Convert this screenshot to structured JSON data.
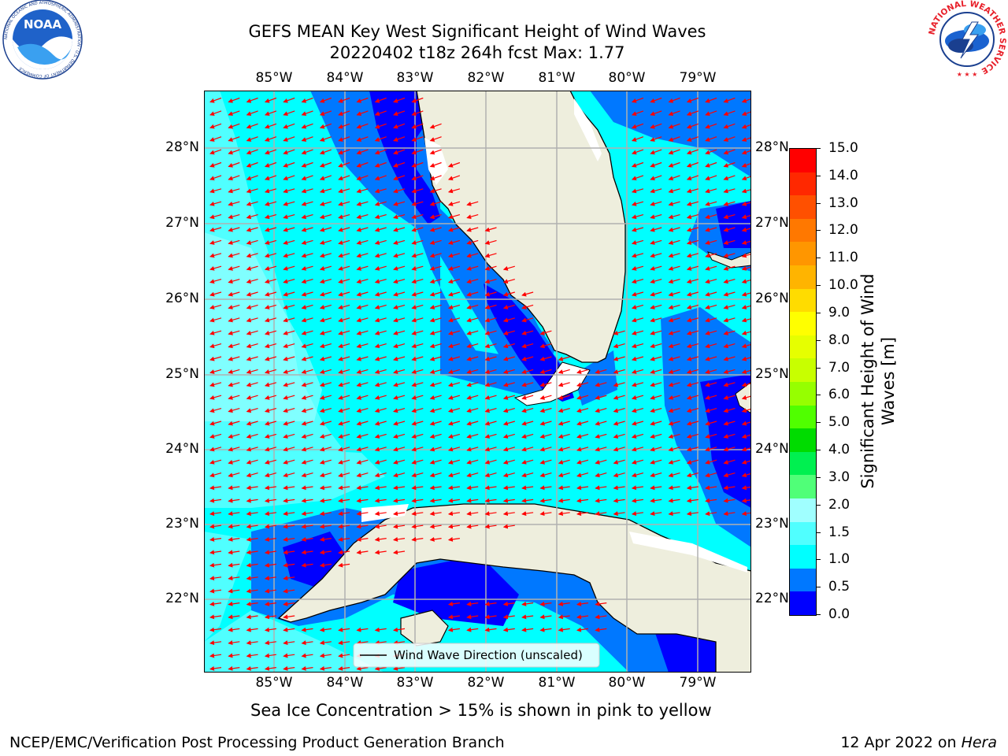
{
  "header": {
    "title_line1": "GEFS MEAN Key West Significant Height of Wind Waves",
    "title_line2": "20220402 t18z 264h fcst   Max: 1.77"
  },
  "logos": {
    "noaa_text": "NOAA",
    "noaa_ring_text": "NATIONAL OCEANIC AND ATMOSPHERIC ADMINISTRATION · U.S. DEPARTMENT OF COMMERCE",
    "nws_ring_text": "NATIONAL WEATHER SERVICE"
  },
  "map": {
    "lon_labels": [
      "85°W",
      "84°W",
      "83°W",
      "82°W",
      "81°W",
      "80°W",
      "79°W"
    ],
    "lat_labels": [
      "28°N",
      "27°N",
      "26°N",
      "25°N",
      "24°N",
      "23°N",
      "22°N"
    ],
    "legend_label": "Wind Wave Direction (unscaled)",
    "colors": {
      "land": "#eeeedd",
      "band_0_0.5": "#0000ff",
      "band_0.5_1.0": "#0078ff",
      "band_1.0_1.5": "#00ffff",
      "band_1.5_2.0": "#50ffff",
      "band_2.0_3.0": "#a0ffff",
      "arrow": "#ff0000",
      "grid": "#b0b0b0"
    }
  },
  "colorbar": {
    "label": "Significant Height of Wind Waves [m]",
    "ticks": [
      "15.0",
      "14.0",
      "13.0",
      "12.0",
      "11.0",
      "10.0",
      "9.0",
      "8.0",
      "7.0",
      "6.0",
      "5.0",
      "4.0",
      "3.0",
      "2.0",
      "1.5",
      "1.0",
      "0.5",
      "0.0"
    ],
    "colors_top_to_bottom": [
      "#ff0000",
      "#ff2800",
      "#ff5000",
      "#ff7800",
      "#ff9600",
      "#ffb400",
      "#ffdc00",
      "#ffff00",
      "#e6ff00",
      "#c8ff00",
      "#96ff00",
      "#50ff00",
      "#00dc00",
      "#00f050",
      "#50ff78",
      "#a0ffff",
      "#50ffff",
      "#00ffff",
      "#0078ff",
      "#0000ff"
    ]
  },
  "captions": {
    "sea_ice_note": "Sea Ice Concentration > 15% is shown in pink to yellow",
    "credit": "NCEP/EMC/Verification Post Processing Product Generation Branch",
    "date_prefix": "12 Apr 2022 on ",
    "host": "Hera"
  }
}
